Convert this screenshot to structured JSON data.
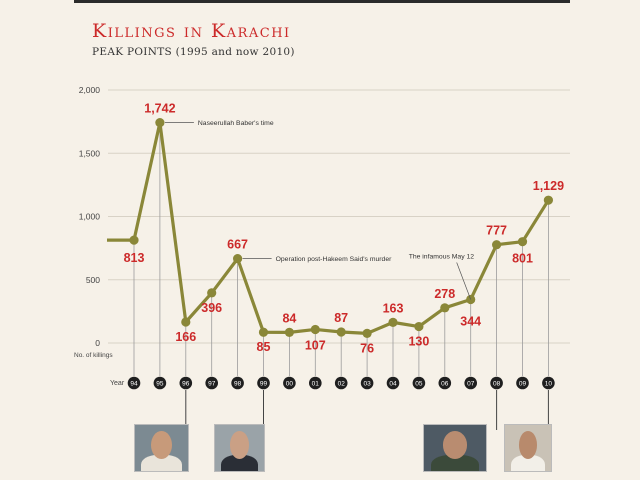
{
  "header": {
    "title": "Killings in Karachi",
    "subtitle": "PEAK POINTS (1995 and now 2010)"
  },
  "chart_data": {
    "type": "line",
    "title": "Killings in Karachi",
    "subtitle": "PEAK POINTS (1995 and now 2010)",
    "ylabel": "No. of killings",
    "xlabel": "Year",
    "ylim": [
      0,
      2000
    ],
    "yticks": [
      0,
      500,
      1000,
      1500,
      2000
    ],
    "ytick_labels": [
      "0",
      "500",
      "1,000",
      "1,500",
      "2,000"
    ],
    "categories": [
      "94",
      "95",
      "96",
      "97",
      "98",
      "99",
      "00",
      "01",
      "02",
      "03",
      "04",
      "05",
      "06",
      "07",
      "08",
      "09",
      "10"
    ],
    "series": [
      {
        "values": [
          813,
          1742,
          166,
          396,
          667,
          85,
          84,
          107,
          87,
          76,
          163,
          130,
          278,
          344,
          777,
          801,
          1129
        ],
        "labels": [
          "813",
          "1,742",
          "166",
          "396",
          "667",
          "85",
          "84",
          "107",
          "87",
          "76",
          "163",
          "130",
          "278",
          "344",
          "777",
          "801",
          "1,129"
        ],
        "color": "#8a8738"
      }
    ],
    "annotations": [
      {
        "index": 1,
        "text": "Naseerullah Baber's time"
      },
      {
        "index": 4,
        "text": "Operation post-Hakeem Said's murder"
      },
      {
        "index": 13,
        "text": "The infamous May 12"
      }
    ],
    "photo_years": [
      "96",
      "99",
      "08",
      "10"
    ],
    "colors": {
      "label": "#cc2a2a",
      "line": "#8a8738",
      "grid": "#d8d2c6",
      "axis_text": "#444",
      "badge": "#1f1f1f"
    },
    "grid": true
  }
}
